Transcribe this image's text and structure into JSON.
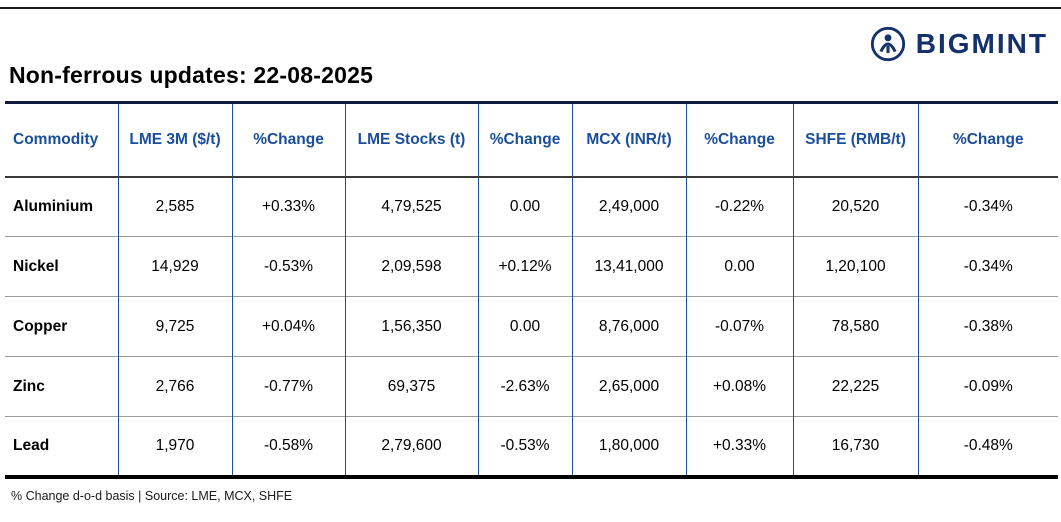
{
  "header": {
    "title": "Non-ferrous updates: 22-08-2025",
    "brand": "BIGMINT"
  },
  "footer": {
    "note": "% Change d-o-d basis | Source: LME, MCX, SHFE"
  },
  "colors": {
    "header_text": "#1a4e9b",
    "positive": "#00a551",
    "negative": "#e8112d",
    "brand_navy": "#14316b"
  },
  "chart_data": {
    "type": "table",
    "title": "Non-ferrous updates: 22-08-2025",
    "columns": [
      "Commodity",
      "LME 3M ($/t)",
      "%Change",
      "LME Stocks (t)",
      "%Change",
      "MCX (INR/t)",
      "%Change",
      "SHFE (RMB/t)",
      "%Change"
    ],
    "change_column_indices": [
      2,
      4,
      6,
      8
    ],
    "rows": [
      [
        "Aluminium",
        "2,585",
        "+0.33%",
        "4,79,525",
        "0.00",
        "2,49,000",
        "-0.22%",
        "20,520",
        "-0.34%"
      ],
      [
        "Nickel",
        "14,929",
        "-0.53%",
        "2,09,598",
        "+0.12%",
        "13,41,000",
        "0.00",
        "1,20,100",
        "-0.34%"
      ],
      [
        "Copper",
        "9,725",
        "+0.04%",
        "1,56,350",
        "0.00",
        "8,76,000",
        "-0.07%",
        "78,580",
        "-0.38%"
      ],
      [
        "Zinc",
        "2,766",
        "-0.77%",
        "69,375",
        "-2.63%",
        "2,65,000",
        "+0.08%",
        "22,225",
        "-0.09%"
      ],
      [
        "Lead",
        "1,970",
        "-0.58%",
        "2,79,600",
        "-0.53%",
        "1,80,000",
        "+0.33%",
        "16,730",
        "-0.48%"
      ]
    ],
    "note": "% Change d-o-d basis | Source: LME, MCX, SHFE"
  }
}
